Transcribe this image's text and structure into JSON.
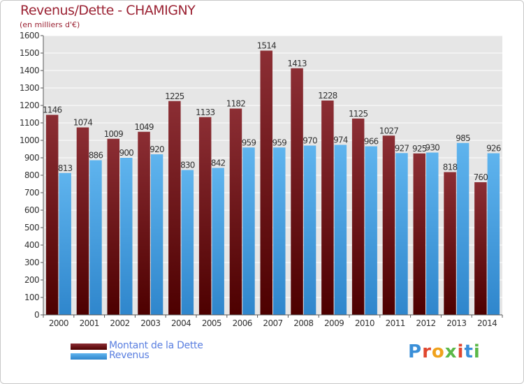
{
  "header": {
    "title": "Revenus/Dette - CHAMIGNY",
    "subtitle": "(en milliers d'€)"
  },
  "legend": {
    "debt_label": "Montant de la Dette",
    "revenue_label": "Revenus"
  },
  "logo": {
    "text": "Proxiti"
  },
  "colors": {
    "debt_top": "#8c2e34",
    "debt_bottom": "#4d0000",
    "revenue_top": "#5fb4ee",
    "revenue_bottom": "#2f86cc",
    "title": "#9b2233",
    "legend_text": "#5a7fe0"
  },
  "chart_data": {
    "type": "bar",
    "title": "Revenus/Dette - CHAMIGNY",
    "ylabel": "(en milliers d'€)",
    "xlabel": "",
    "ylim": [
      0,
      1600
    ],
    "ytick_step": 100,
    "grid": true,
    "categories": [
      "2000",
      "2001",
      "2002",
      "2003",
      "2004",
      "2005",
      "2006",
      "2007",
      "2008",
      "2009",
      "2010",
      "2011",
      "2012",
      "2013",
      "2014"
    ],
    "series": [
      {
        "name": "Montant de la Dette",
        "values": [
          1146,
          1074,
          1009,
          1049,
          1225,
          1133,
          1182,
          1514,
          1413,
          1228,
          1125,
          1027,
          925,
          818,
          760
        ]
      },
      {
        "name": "Revenus",
        "values": [
          813,
          886,
          900,
          920,
          830,
          842,
          959,
          959,
          970,
          974,
          966,
          927,
          930,
          985,
          926
        ]
      }
    ]
  }
}
